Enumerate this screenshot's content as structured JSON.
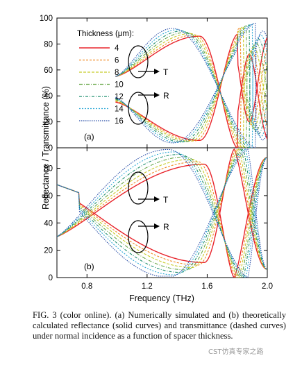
{
  "figure": {
    "ylabel": "Reflectance / Transmittance (%)",
    "xlabel": "Frequency (THz)",
    "legend": {
      "title": "Thickness (μm):",
      "entries": [
        "4",
        "6",
        "8",
        "10",
        "12",
        "14",
        "16"
      ]
    },
    "colors": [
      "#e8232a",
      "#f08a23",
      "#c8cc2a",
      "#6aa84a",
      "#1e8f6e",
      "#2aa7d6",
      "#2a4fa8"
    ],
    "annotations": {
      "transmittance": "T",
      "reflectance": "R"
    },
    "panels": [
      {
        "label": "(a)",
        "yticks": [
          "0",
          "20",
          "40",
          "60",
          "80",
          "100"
        ],
        "xticks": []
      },
      {
        "label": "(b)",
        "yticks": [
          "0",
          "20",
          "40",
          "60",
          "80"
        ],
        "xticks": [
          "0.8",
          "1.2",
          "1.6",
          "2.0"
        ]
      }
    ]
  },
  "chart_data": [
    {
      "type": "line",
      "panel": "(a)",
      "xlim": [
        0.6,
        2.0
      ],
      "ylim": [
        0,
        100
      ],
      "series_thickness_um": [
        4,
        6,
        8,
        10,
        12,
        14,
        16
      ],
      "transmittance_peaks": [
        [
          1.55,
          86
        ],
        [
          1.52,
          88
        ],
        [
          1.49,
          90
        ],
        [
          1.46,
          91
        ],
        [
          1.43,
          92
        ],
        [
          1.4,
          93
        ],
        [
          1.37,
          93
        ]
      ],
      "reflectance_minima": [
        [
          1.55,
          6
        ],
        [
          1.52,
          5
        ],
        [
          1.49,
          4
        ],
        [
          1.46,
          3
        ],
        [
          1.43,
          3
        ],
        [
          1.4,
          2
        ],
        [
          1.37,
          2
        ]
      ],
      "second_band_peak_T": [
        [
          1.88,
          72
        ],
        [
          1.9,
          80
        ],
        [
          1.92,
          84
        ],
        [
          1.94,
          86
        ],
        [
          1.95,
          88
        ],
        [
          1.96,
          89
        ],
        [
          1.97,
          90
        ]
      ]
    },
    {
      "type": "line",
      "panel": "(b)",
      "xlim": [
        0.6,
        2.0
      ],
      "ylim": [
        0,
        95
      ],
      "series_thickness_um": [
        4,
        6,
        8,
        10,
        12,
        14,
        16
      ],
      "transmittance_peaks": [
        [
          1.58,
          83
        ],
        [
          1.54,
          87
        ],
        [
          1.5,
          90
        ],
        [
          1.46,
          92
        ],
        [
          1.42,
          93
        ],
        [
          1.38,
          94
        ],
        [
          1.34,
          94
        ]
      ],
      "reflectance_minima": [
        [
          1.58,
          14
        ],
        [
          1.54,
          10
        ],
        [
          1.5,
          7
        ],
        [
          1.46,
          5
        ],
        [
          1.42,
          4
        ],
        [
          1.38,
          3
        ],
        [
          1.34,
          2
        ]
      ]
    }
  ],
  "caption": "FIG. 3  (color online). (a) Numerically simulated and (b) theoretically calculated reflectance (solid curves) and transmittance (dashed curves) under normal incidence as a function of spacer thickness.",
  "watermark": "CST仿真专家之路"
}
